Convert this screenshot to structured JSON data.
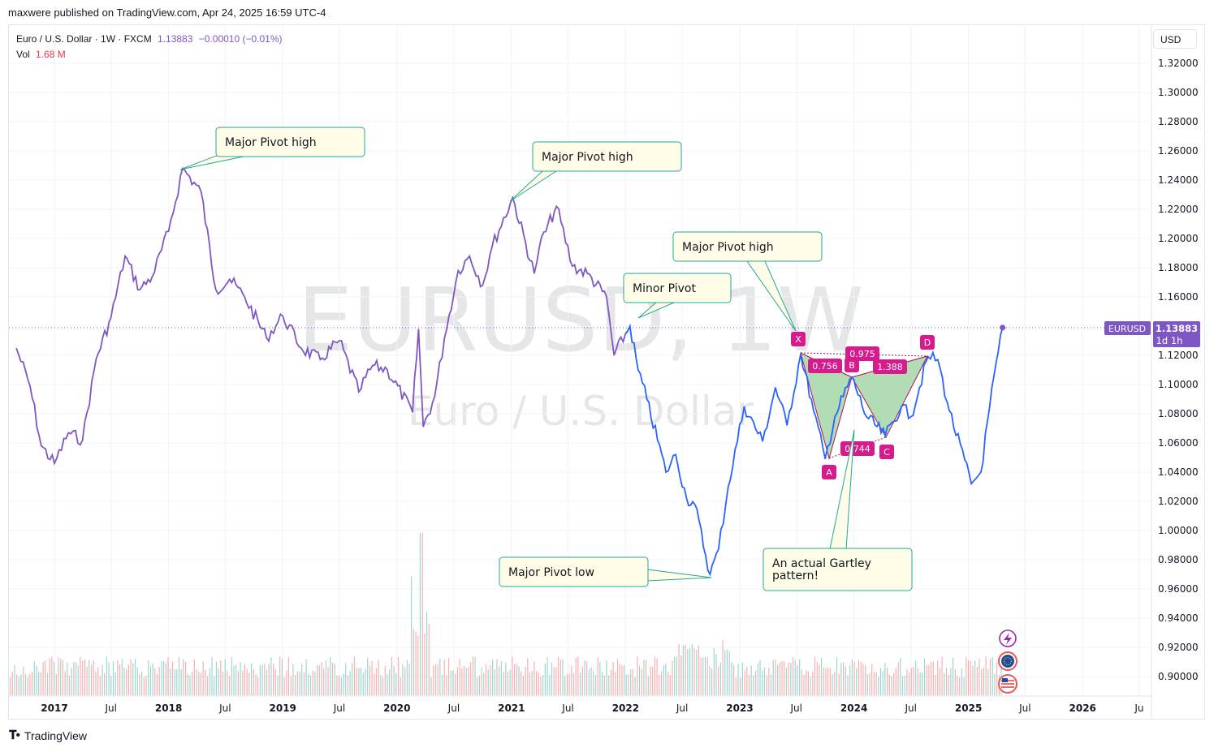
{
  "header": {
    "published": "maxwere published on TradingView.com, Apr 24, 2025 16:59 UTC-4"
  },
  "legend": {
    "symbol_line": "Euro / U.S. Dollar · 1W · FXCM",
    "price": "1.13883",
    "change": "−0.00010 (−0.01%)",
    "vol_label": "Vol",
    "vol_value": "1.68 M"
  },
  "axis": {
    "currency": "USD",
    "price_ticks": [
      "1.32000",
      "1.30000",
      "1.28000",
      "1.26000",
      "1.24000",
      "1.22000",
      "1.20000",
      "1.18000",
      "1.16000",
      "1.14000",
      "1.12000",
      "1.10000",
      "1.08000",
      "1.06000",
      "1.04000",
      "1.02000",
      "1.00000",
      "0.98000",
      "0.96000",
      "0.94000",
      "0.92000",
      "0.90000"
    ],
    "time_ticks": [
      "2017",
      "Jul",
      "2018",
      "Jul",
      "2019",
      "Jul",
      "2020",
      "Jul",
      "2021",
      "Jul",
      "2022",
      "Jul",
      "2023",
      "Jul",
      "2024",
      "Jul",
      "2025",
      "Jul",
      "2026",
      "Ju"
    ]
  },
  "price_label": {
    "symbol": "EURUSD",
    "value": "1.13883",
    "countdown": "1d 1h"
  },
  "watermark": {
    "main": "EURUSD, 1W",
    "sub": "Euro / U.S. Dollar"
  },
  "annotations": [
    {
      "id": "major-pivot-high-1",
      "text": "Major Pivot high"
    },
    {
      "id": "major-pivot-high-2",
      "text": "Major Pivot high"
    },
    {
      "id": "major-pivot-high-3",
      "text": "Major Pivot high"
    },
    {
      "id": "minor-pivot",
      "text": "Minor Pivot"
    },
    {
      "id": "major-pivot-low",
      "text": "Major Pivot low"
    },
    {
      "id": "gartley",
      "text_line1": "An actual Gartley",
      "text_line2": "pattern!"
    }
  ],
  "pattern": {
    "points": [
      "X",
      "A",
      "B",
      "C",
      "D"
    ],
    "ratios": {
      "xab": "0.756",
      "abc": "0.975",
      "bcd": "1.388",
      "xad": "0.744"
    },
    "prices": {
      "X": 1.1225,
      "A": 1.0495,
      "B": 1.1045,
      "C": 1.0645,
      "D": 1.1205
    }
  },
  "footer": {
    "brand": "TradingView"
  },
  "colors": {
    "line_early": "#7e57c2",
    "line_late": "#2962ff",
    "pattern_fill": "#a5d6a7",
    "pattern_point": "#d81b8c",
    "callout_bg": "#fffde7",
    "callout_border": "#26a69a",
    "vol_up": "#26a69a",
    "vol_down": "#ef5350"
  },
  "chart_data": {
    "type": "line",
    "title": "Euro / U.S. Dollar · 1W · FXCM",
    "ylabel": "",
    "xlabel": "",
    "ylim": [
      0.888,
      1.334
    ],
    "xlim": [
      "2016-09-01",
      "2026-10-01"
    ],
    "series": [
      {
        "name": "EURUSD",
        "x": [
          "2016-09-01",
          "2016-10-15",
          "2016-11-20",
          "2017-01-01",
          "2017-02-15",
          "2017-04-01",
          "2017-05-15",
          "2017-07-01",
          "2017-08-15",
          "2017-10-01",
          "2017-11-10",
          "2018-01-01",
          "2018-02-15",
          "2018-04-15",
          "2018-06-01",
          "2018-07-15",
          "2018-09-01",
          "2018-11-10",
          "2019-01-01",
          "2019-03-01",
          "2019-05-01",
          "2019-07-01",
          "2019-09-01",
          "2019-10-15",
          "2019-12-01",
          "2020-02-20",
          "2020-03-10",
          "2020-03-25",
          "2020-05-01",
          "2020-06-01",
          "2020-07-15",
          "2020-08-20",
          "2020-10-01",
          "2020-11-01",
          "2021-01-05",
          "2021-03-15",
          "2021-04-01",
          "2021-05-25",
          "2021-07-15",
          "2021-09-01",
          "2021-11-01",
          "2021-11-25",
          "2022-01-15",
          "2022-02-10",
          "2022-03-10",
          "2022-05-10",
          "2022-06-10",
          "2022-07-15",
          "2022-08-10",
          "2022-09-28",
          "2022-10-25",
          "2022-11-25",
          "2023-01-15",
          "2023-03-15",
          "2023-04-25",
          "2023-06-01",
          "2023-07-15",
          "2023-08-25",
          "2023-10-01",
          "2023-11-01",
          "2023-12-25",
          "2024-02-10",
          "2024-04-10",
          "2024-06-01",
          "2024-07-01",
          "2024-08-25",
          "2024-09-25",
          "2024-11-01",
          "2025-01-10",
          "2025-02-10",
          "2025-03-10",
          "2025-04-20"
        ],
        "values": [
          1.125,
          1.099,
          1.058,
          1.046,
          1.067,
          1.062,
          1.118,
          1.146,
          1.188,
          1.165,
          1.174,
          1.205,
          1.248,
          1.232,
          1.165,
          1.172,
          1.16,
          1.132,
          1.147,
          1.125,
          1.117,
          1.13,
          1.095,
          1.113,
          1.11,
          1.081,
          1.138,
          1.071,
          1.092,
          1.132,
          1.178,
          1.188,
          1.168,
          1.195,
          1.228,
          1.176,
          1.195,
          1.222,
          1.181,
          1.176,
          1.16,
          1.12,
          1.14,
          1.11,
          1.09,
          1.04,
          1.052,
          1.022,
          1.018,
          0.97,
          0.987,
          1.03,
          1.085,
          1.061,
          1.098,
          1.072,
          1.121,
          1.082,
          1.049,
          1.078,
          1.105,
          1.078,
          1.065,
          1.085,
          1.078,
          1.119,
          1.117,
          1.082,
          1.032,
          1.04,
          1.085,
          1.139
        ]
      }
    ],
    "annotations": [
      "Major Pivot high",
      "Major Pivot high",
      "Major Pivot high",
      "Minor Pivot",
      "Major Pivot low",
      "An actual Gartley pattern!"
    ]
  }
}
